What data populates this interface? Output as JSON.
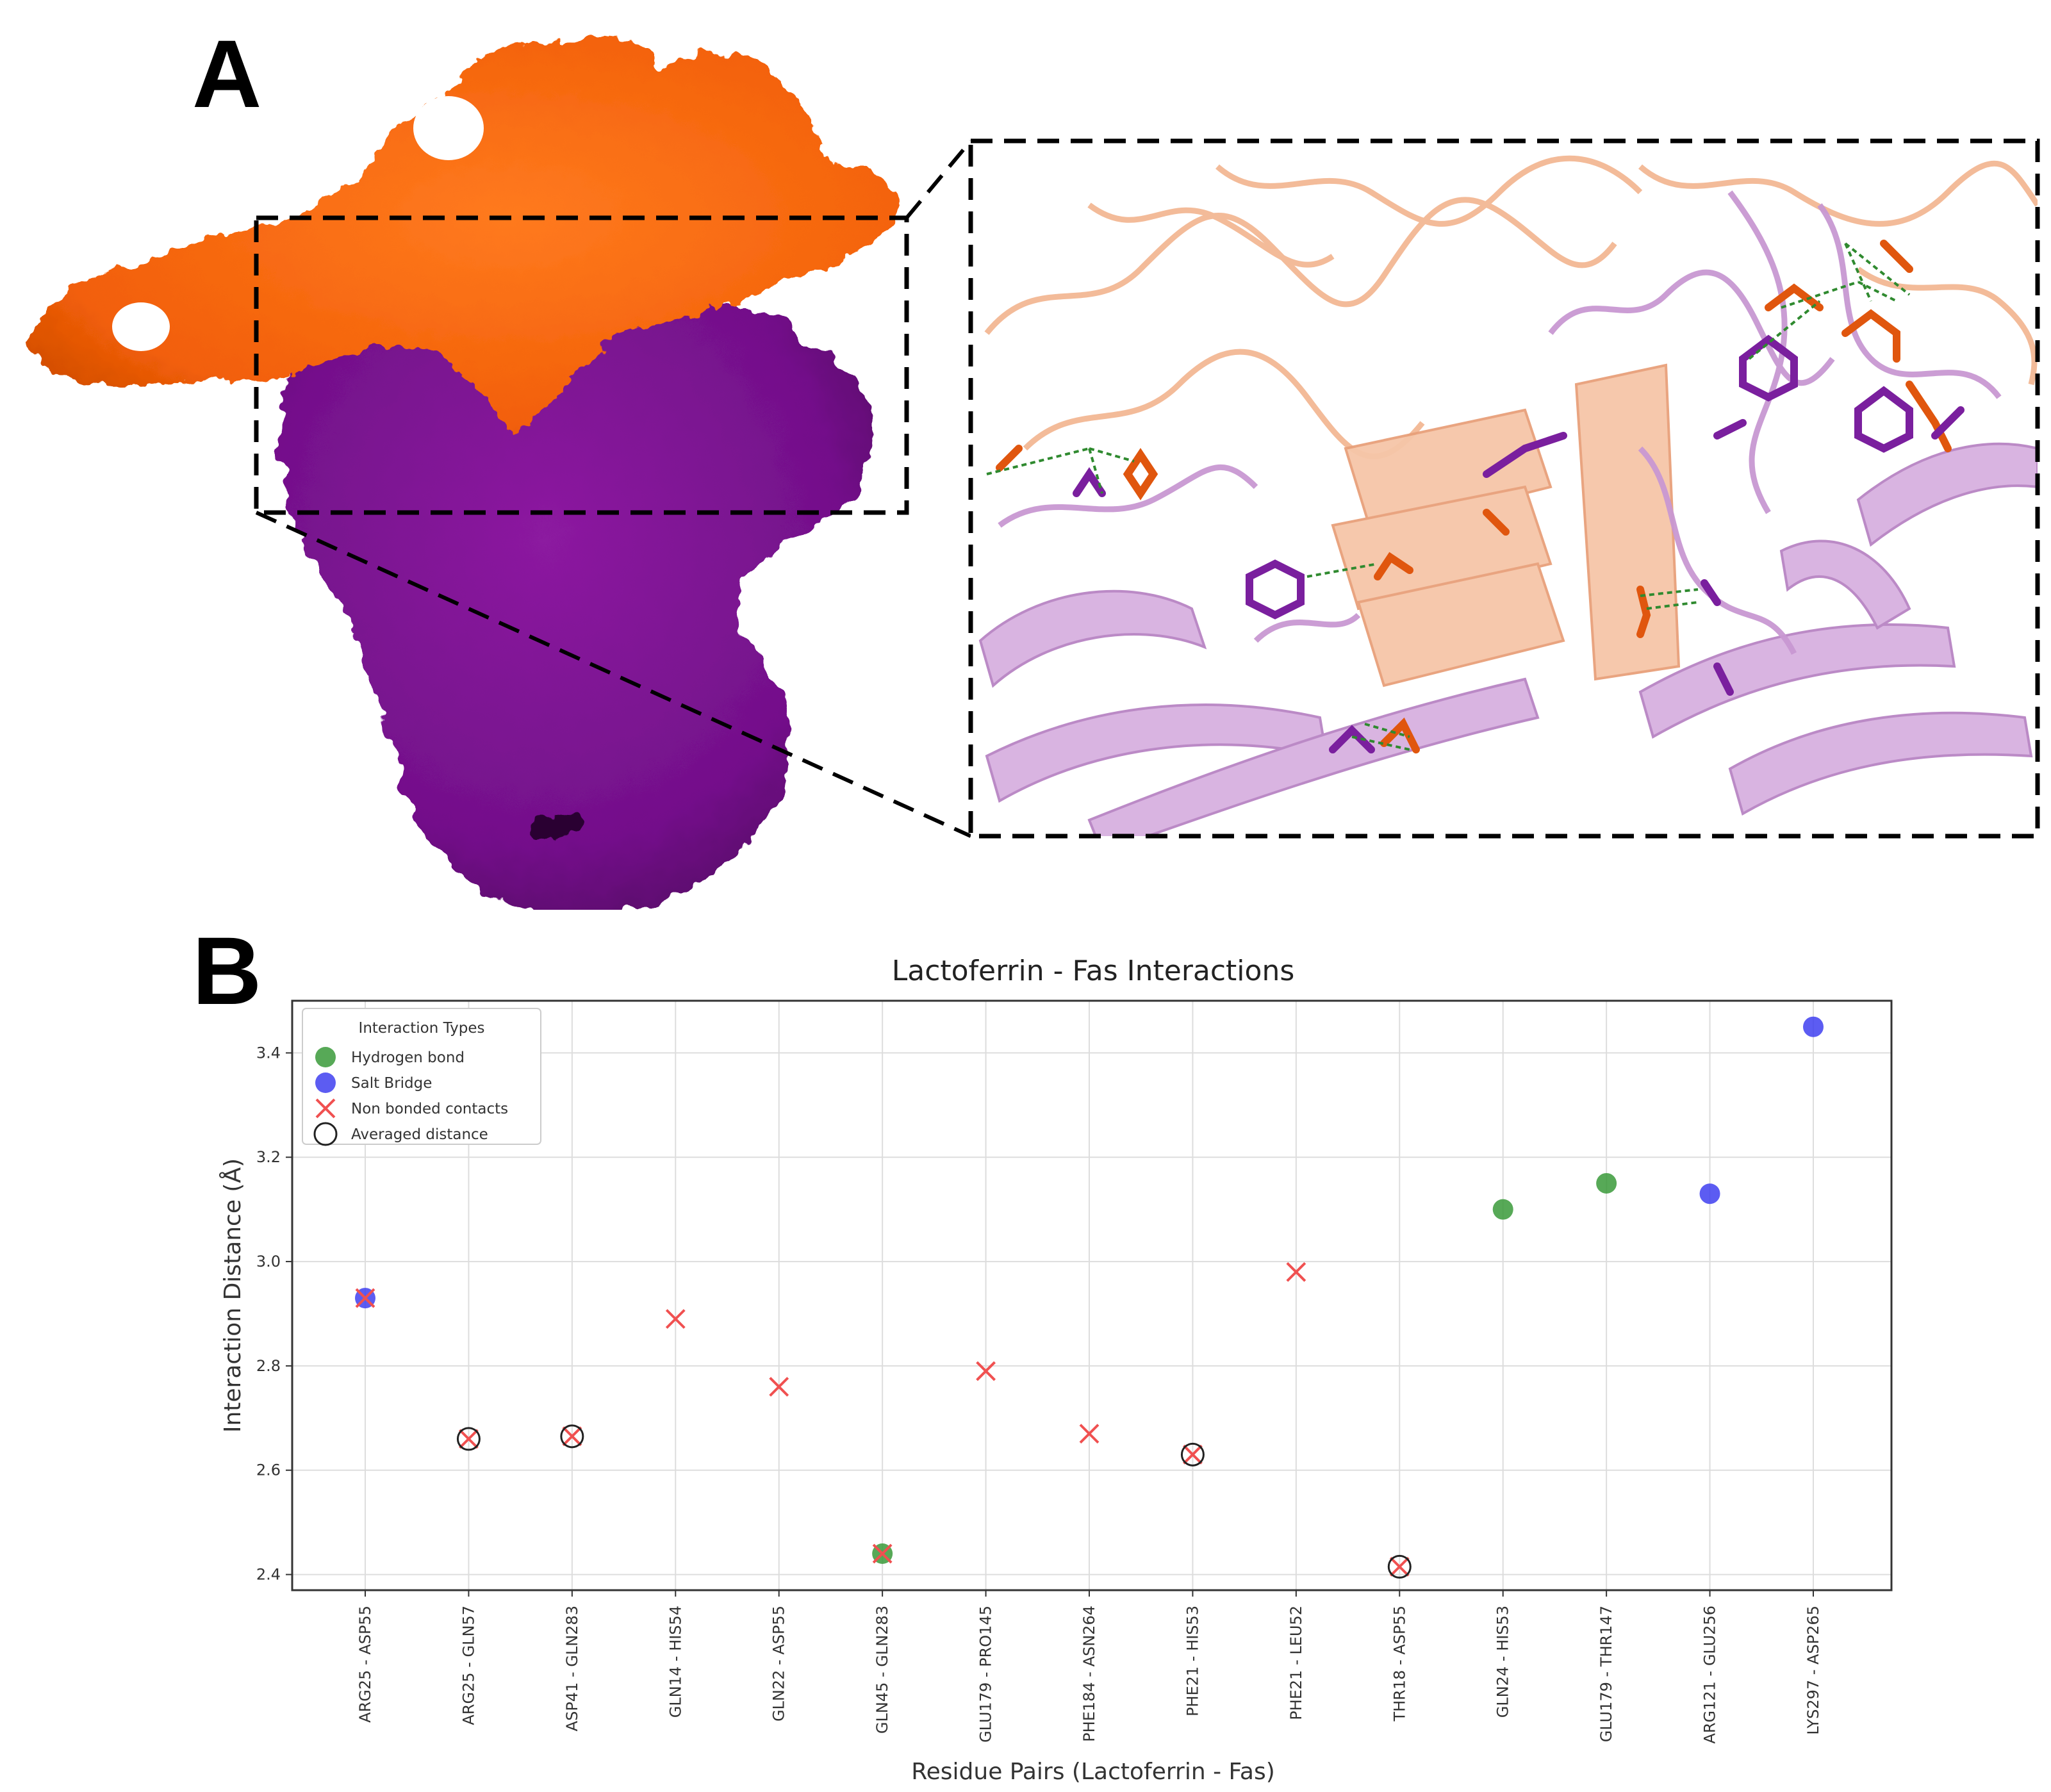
{
  "panels": {
    "a_label": "A",
    "b_label": "B"
  },
  "colors": {
    "lactoferrin_surface": "#ff6a0d",
    "lactoferrin_dark": "#d94f00",
    "fas_surface": "#7e128f",
    "fas_dark": "#5a0b66",
    "lactoferrin_ribbon": "#f6c2a3",
    "fas_ribbon": "#d4a8dd",
    "hbond": "#3a9a3a",
    "salt_bridge": "#4040f0",
    "non_bonded": "#f05050",
    "averaged": "#222222"
  },
  "chart_data": {
    "type": "scatter",
    "title": "Lactoferrin - Fas Interactions",
    "xlabel": "Residue Pairs (Lactoferrin - Fas)",
    "ylabel": "Interaction Distance (Å)",
    "ylim": [
      2.37,
      3.5
    ],
    "yticks": [
      2.4,
      2.6,
      2.8,
      3.0,
      3.2,
      3.4
    ],
    "ytick_labels": [
      "2.4",
      "2.6",
      "2.8",
      "3.0",
      "3.2",
      "3.4"
    ],
    "grid": true,
    "legend_position": "top-left",
    "legend_title": "Interaction Types",
    "legend": [
      {
        "key": "hbond",
        "label": "Hydrogen bond"
      },
      {
        "key": "salt",
        "label": "Salt Bridge"
      },
      {
        "key": "nonbonded",
        "label": "Non bonded contacts"
      },
      {
        "key": "averaged",
        "label": "Averaged distance"
      }
    ],
    "categories": [
      "ARG25 - ASP55",
      "ARG25 - GLN57",
      "ASP41 - GLN283",
      "GLN14 - HIS54",
      "GLN22 - ASP55",
      "GLN45 - GLN283",
      "GLU179 - PRO145",
      "PHE184 - ASN264",
      "PHE21 - HIS53",
      "PHE21 - LEU52",
      "THR18 - ASP55",
      "GLN24 - HIS53",
      "GLU179 - THR147",
      "ARG121 - GLU256",
      "LYS297 - ASP265"
    ],
    "series": [
      {
        "name": "Hydrogen bond",
        "key": "hbond",
        "points": [
          {
            "x": "GLN45 - GLN283",
            "y": 2.44
          },
          {
            "x": "GLN24 - HIS53",
            "y": 3.1
          },
          {
            "x": "GLU179 - THR147",
            "y": 3.15
          }
        ]
      },
      {
        "name": "Salt Bridge",
        "key": "salt",
        "points": [
          {
            "x": "ARG25 - ASP55",
            "y": 2.93
          },
          {
            "x": "ARG121 - GLU256",
            "y": 3.13
          },
          {
            "x": "LYS297 - ASP265",
            "y": 3.45
          }
        ]
      },
      {
        "name": "Non bonded contacts",
        "key": "nonbonded",
        "points": [
          {
            "x": "ARG25 - ASP55",
            "y": 2.93
          },
          {
            "x": "ARG25 - GLN57",
            "y": 2.66
          },
          {
            "x": "ASP41 - GLN283",
            "y": 2.665
          },
          {
            "x": "GLN14 - HIS54",
            "y": 2.89
          },
          {
            "x": "GLN22 - ASP55",
            "y": 2.76
          },
          {
            "x": "GLN45 - GLN283",
            "y": 2.44
          },
          {
            "x": "GLU179 - PRO145",
            "y": 2.79
          },
          {
            "x": "PHE184 - ASN264",
            "y": 2.67
          },
          {
            "x": "PHE21 - HIS53",
            "y": 2.63
          },
          {
            "x": "PHE21 - LEU52",
            "y": 2.98
          },
          {
            "x": "THR18 - ASP55",
            "y": 2.415
          }
        ]
      },
      {
        "name": "Averaged distance",
        "key": "averaged",
        "points": [
          {
            "x": "ARG25 - GLN57",
            "y": 2.66
          },
          {
            "x": "ASP41 - GLN283",
            "y": 2.665
          },
          {
            "x": "PHE21 - HIS53",
            "y": 2.63
          },
          {
            "x": "THR18 - ASP55",
            "y": 2.415
          }
        ]
      }
    ]
  }
}
